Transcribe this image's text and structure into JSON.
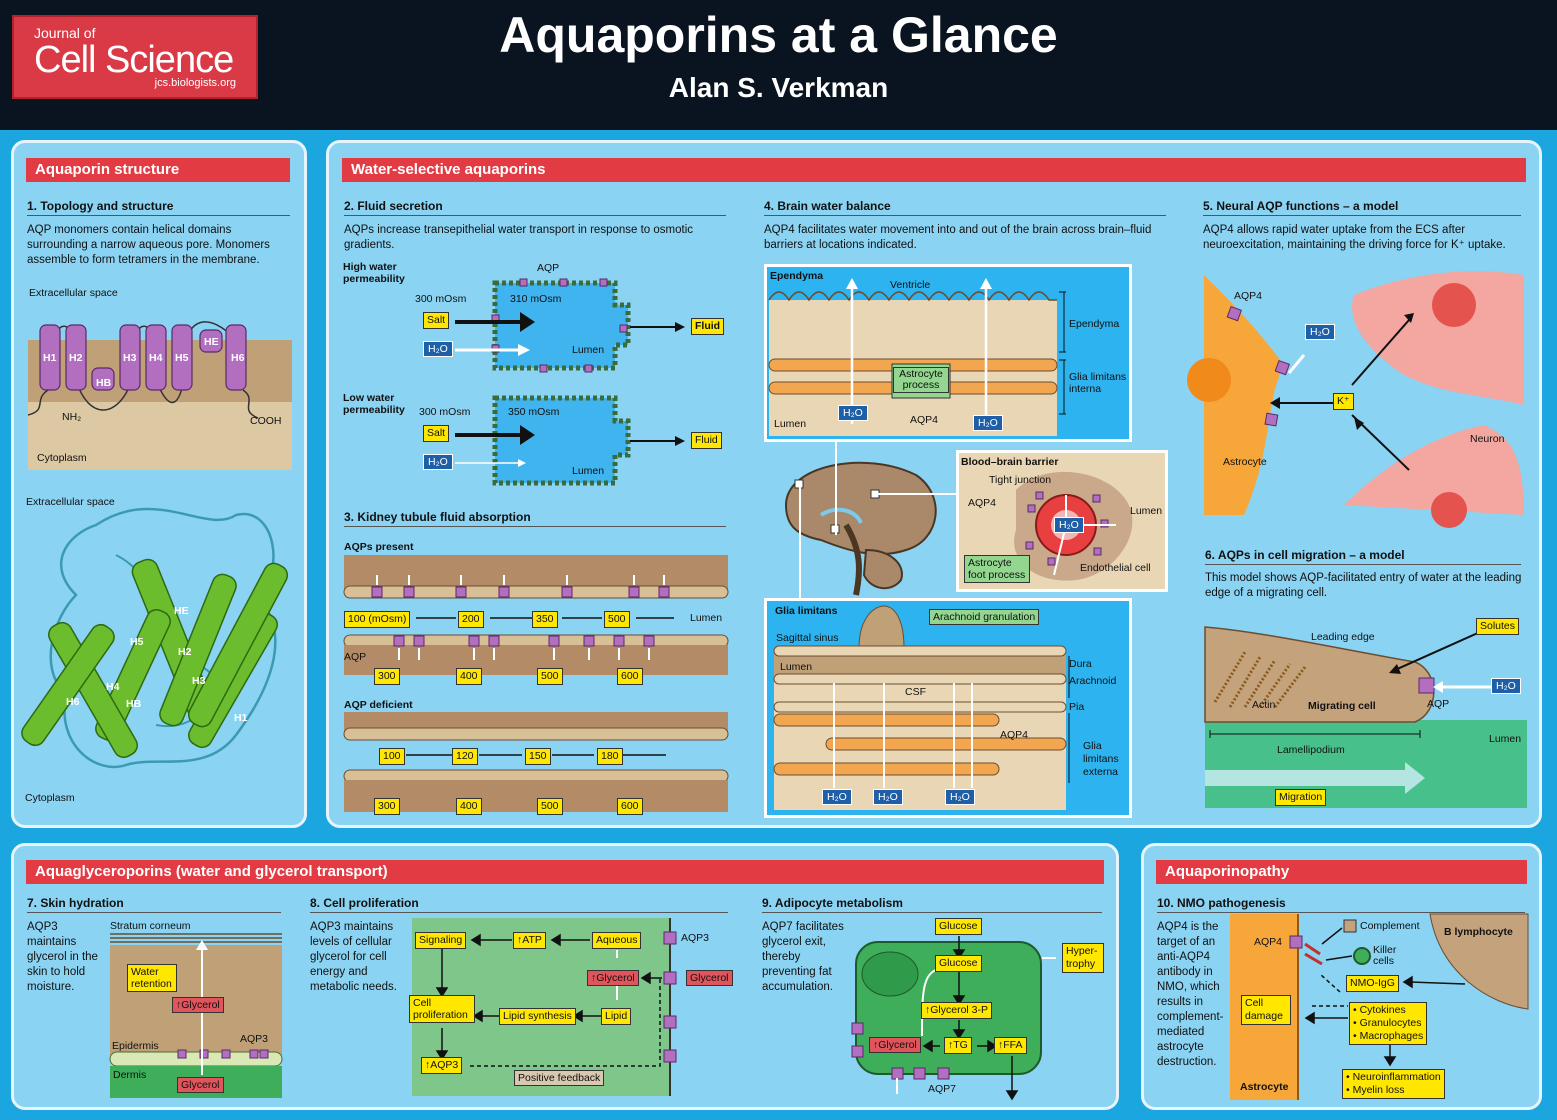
{
  "header": {
    "logo_journal_of": "Journal of",
    "logo_cell_science": "Cell Science",
    "logo_url": "jcs.biologists.org",
    "title": "Aquaporins at a Glance",
    "author": "Alan S. Verkman"
  },
  "colors": {
    "banner_red": "#e23b43",
    "panel_blue": "#8ad3f3",
    "background_blue": "#1ba6e0",
    "label_yellow": "#ffe700",
    "aqp_purple": "#b26fc0",
    "helix_green": "#5aaa2a"
  },
  "structure": {
    "header": "Aquaporin structure",
    "s1_title": "1. Topology and structure",
    "s1_desc": "AQP monomers contain helical domains surrounding a narrow aqueous pore. Monomers assemble to form tetramers in the membrane.",
    "extracellular": "Extracellular space",
    "cytoplasm": "Cytoplasm",
    "helices": [
      "H1",
      "H2",
      "HB",
      "H3",
      "H4",
      "H5",
      "HE",
      "H6"
    ],
    "nh2": "NH₂",
    "cooh": "COOH",
    "extracellular2": "Extracellular space",
    "cytoplasm2": "Cytoplasm",
    "ribbon_labels": [
      "HE",
      "H5",
      "H2",
      "H4",
      "H3",
      "H6",
      "HB",
      "H1"
    ]
  },
  "water": {
    "header": "Water-selective aquaporins",
    "s2_title": "2. Fluid secretion",
    "s2_desc": "AQPs increase transepithelial water transport in response to osmotic gradients.",
    "high": "High water permeability",
    "low": "Low water permeability",
    "osm300": "300 mOsm",
    "osm310": "310 mOsm",
    "osm350": "350 mOsm",
    "aqp": "AQP",
    "lumen": "Lumen",
    "salt": "Salt",
    "h2o": "H₂O",
    "fluid": "Fluid",
    "s3_title": "3. Kidney tubule fluid absorption",
    "aqps_present": "AQPs present",
    "aqp_deficient": "AQP deficient",
    "present_top": [
      "100 (mOsm)",
      "200",
      "350",
      "500"
    ],
    "present_bottom": [
      "300",
      "400",
      "500",
      "600"
    ],
    "deficient_top": [
      "100",
      "120",
      "150",
      "180"
    ],
    "deficient_bottom": [
      "300",
      "400",
      "500",
      "600"
    ],
    "s4_title": "4. Brain water balance",
    "s4_desc": "AQP4 facilitates water movement into and out of the brain across brain–fluid barriers at locations indicated.",
    "ependyma": "Ependyma",
    "ventricle": "Ventricle",
    "ependyma_r": "Ependyma",
    "glia_interna": "Glia limitans interna",
    "astro_process": "Astrocyte process",
    "aqp4": "AQP4",
    "bbb": "Blood–brain barrier",
    "tight_junction": "Tight junction",
    "astro_foot": "Astrocyte foot process",
    "endothelial": "Endothelial cell",
    "glia_limitans": "Glia limitans",
    "sagittal": "Sagittal sinus",
    "arachnoid_gran": "Arachnoid granulation",
    "dura": "Dura",
    "arachnoid": "Arachnoid",
    "csf": "CSF",
    "pia": "Pia",
    "glia_externa": "Glia limitans externa",
    "s5_title": "5. Neural AQP functions – a model",
    "s5_desc": "AQP4 allows rapid water uptake from the ECS after neuroexcitation, maintaining the driving force for K⁺ uptake.",
    "astrocyte": "Astrocyte",
    "neuron": "Neuron",
    "kplus": "K⁺",
    "s6_title": "6. AQPs in cell migration – a model",
    "s6_desc": "This model shows AQP-facilitated entry of water at the leading edge of a migrating cell.",
    "solutes": "Solutes",
    "leading_edge": "Leading edge",
    "actin": "Actin",
    "migrating_cell": "Migrating cell",
    "lamellipodium": "Lamellipodium",
    "migration": "Migration"
  },
  "glycero": {
    "header": "Aquaglyceroporins (water and glycerol transport)",
    "s7_title": "7. Skin hydration",
    "s7_desc": "AQP3 maintains glycerol in the skin to hold moisture.",
    "stratum": "Stratum corneum",
    "water_retention": "Water retention",
    "up_glycerol": "↑Glycerol",
    "epidermis": "Epidermis",
    "aqp3": "AQP3",
    "dermis": "Dermis",
    "glycerol": "Glycerol",
    "s8_title": "8. Cell proliferation",
    "s8_desc": "AQP3 maintains levels of cellular glycerol for cell energy and metabolic needs.",
    "signaling": "Signaling",
    "atp": "↑ATP",
    "aqueous": "Aqueous",
    "cell_prolif": "Cell proliferation",
    "lipid_synth": "Lipid synthesis",
    "lipid": "Lipid",
    "up_aqp3": "↑AQP3",
    "pos_feedback": "Positive feedback",
    "s9_title": "9. Adipocyte metabolism",
    "s9_desc": "AQP7 facilitates glycerol exit, thereby preventing fat accumulation.",
    "glucose": "Glucose",
    "glycerol3p": "↑Glycerol 3-P",
    "tg": "↑TG",
    "ffa": "↑FFA",
    "hypertrophy": "Hyper-trophy",
    "aqp7": "AQP7"
  },
  "aquaporinopathy": {
    "header": "Aquaporinopathy",
    "s10_title": "10. NMO pathogenesis",
    "s10_desc": "AQP4 is the target of an anti-AQP4 antibody in NMO, which results in complement-mediated astrocyte destruction.",
    "aqp4": "AQP4",
    "complement": "Complement",
    "b_lymph": "B lymphocyte",
    "killer": "Killer cells",
    "nmo_igg": "NMO-IgG",
    "cell_damage": "Cell damage",
    "effectors": [
      "• Cytokines",
      "• Granulocytes",
      "• Macrophages"
    ],
    "outcomes": [
      "• Neuroinflammation",
      "• Myelin loss"
    ],
    "astrocyte": "Astrocyte"
  }
}
